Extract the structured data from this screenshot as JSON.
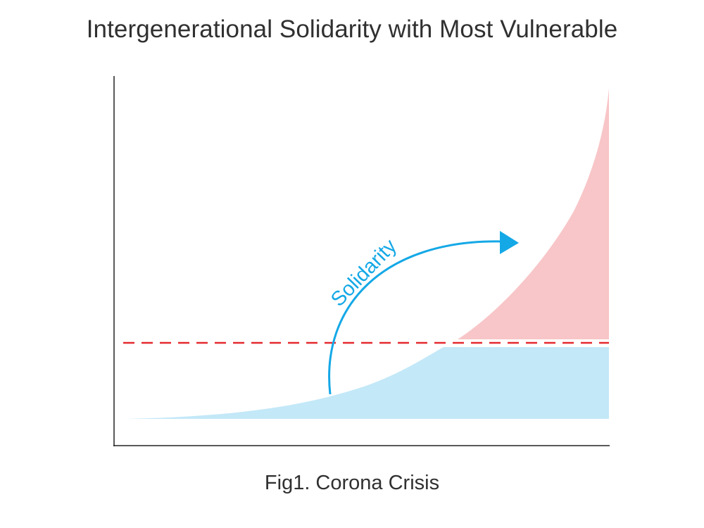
{
  "title": "Intergenerational Solidarity with Most Vulnerable",
  "caption": "Fig1. Corona Crisis",
  "arrow_label": "Solidarity",
  "colors": {
    "blue_area": "#c3e8f8",
    "pink_area": "#f8c6c8",
    "threshold_line": "#e32a2f",
    "arrow": "#14a8e6",
    "axis": "#222222",
    "text": "#303030"
  },
  "icons": {
    "arrow_head": "triangle-right"
  }
}
